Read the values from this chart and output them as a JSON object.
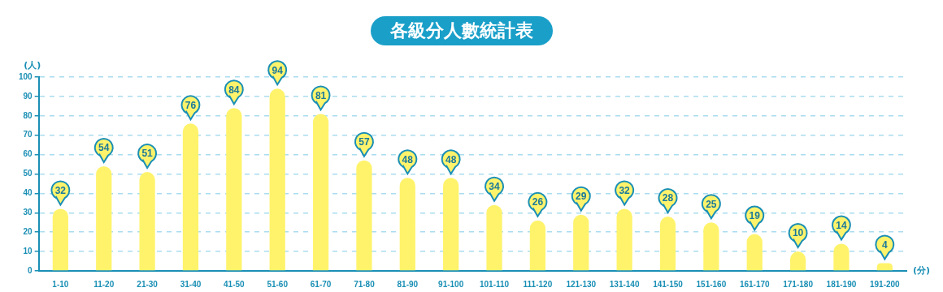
{
  "chart_data": {
    "type": "bar",
    "title": "各級分人數統計表",
    "ylabel": "(人)",
    "xlabel": "(分)",
    "categories": [
      "1-10",
      "11-20",
      "21-30",
      "31-40",
      "41-50",
      "51-60",
      "61-70",
      "71-80",
      "81-90",
      "91-100",
      "101-110",
      "111-120",
      "121-130",
      "131-140",
      "141-150",
      "151-160",
      "161-170",
      "171-180",
      "181-190",
      "191-200"
    ],
    "values": [
      32,
      54,
      51,
      76,
      84,
      94,
      81,
      57,
      48,
      48,
      34,
      26,
      29,
      32,
      28,
      25,
      19,
      10,
      14,
      4
    ],
    "color": "#fff36b",
    "ylim": [
      0,
      100
    ],
    "yticks": [
      0,
      10,
      20,
      30,
      40,
      50,
      60,
      70,
      80,
      90,
      100
    ],
    "grid": "y",
    "data_labels": true
  }
}
